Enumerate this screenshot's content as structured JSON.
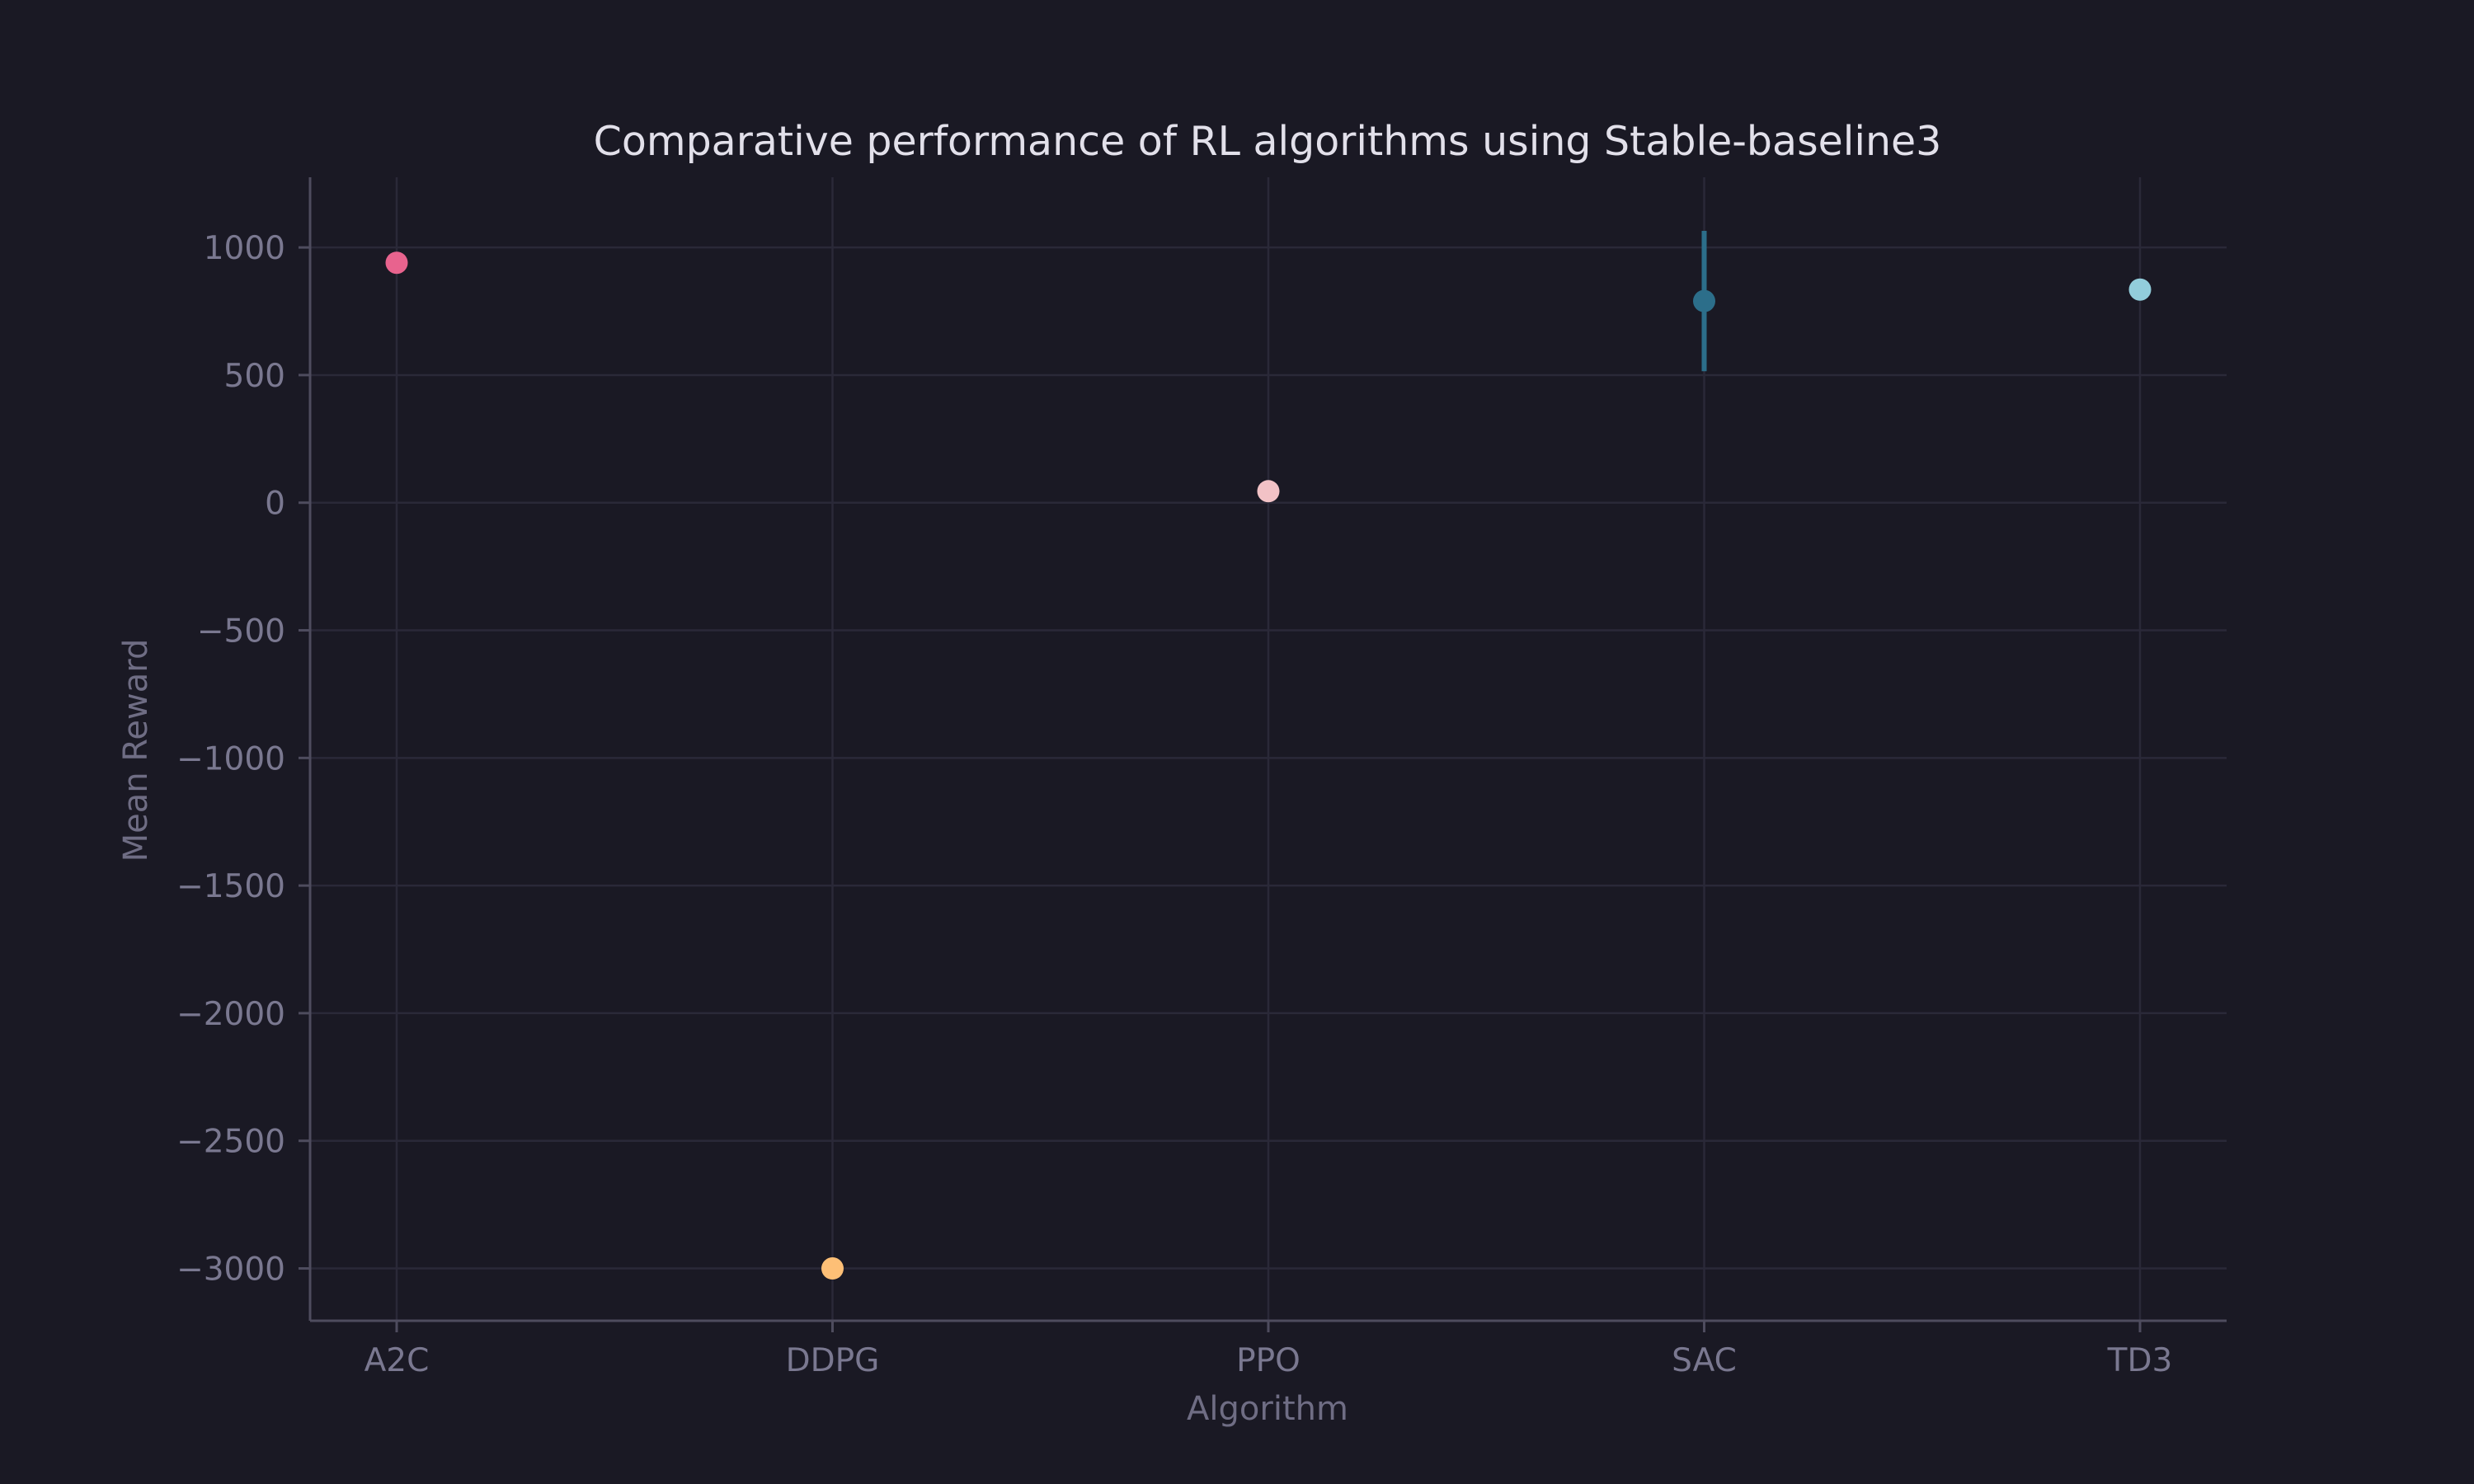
{
  "chart_data": {
    "type": "scatter",
    "title": "Comparative performance of RL algorithms using Stable-baseline3",
    "xlabel": "Algorithm",
    "ylabel": "Mean Reward",
    "categories": [
      "A2C",
      "DDPG",
      "PPO",
      "SAC",
      "TD3"
    ],
    "points": [
      {
        "category": "A2C",
        "value": 940,
        "error": 0,
        "color": "#e8638e"
      },
      {
        "category": "DDPG",
        "value": -3000,
        "error": 0,
        "color": "#fdbf76"
      },
      {
        "category": "PPO",
        "value": 45,
        "error": 0,
        "color": "#f2c2c6"
      },
      {
        "category": "SAC",
        "value": 790,
        "error": 275,
        "color": "#2c6e8a"
      },
      {
        "category": "TD3",
        "value": 835,
        "error": 0,
        "color": "#92cddb"
      }
    ],
    "yticks": [
      1000,
      500,
      0,
      -500,
      -1000,
      -1500,
      -2000,
      -2500,
      -3000
    ],
    "ytick_labels": [
      "1000",
      "500",
      "0",
      "−500",
      "−1000",
      "−1500",
      "−2000",
      "−2500",
      "−3000"
    ],
    "ylim": [
      -3205,
      1275
    ],
    "grid": true,
    "colors": {
      "background": "#1a1924",
      "grid": "#2a2938",
      "axis": "#4e4c5e",
      "tick_text": "#7a7890",
      "title_text": "#e2e0ea"
    }
  }
}
